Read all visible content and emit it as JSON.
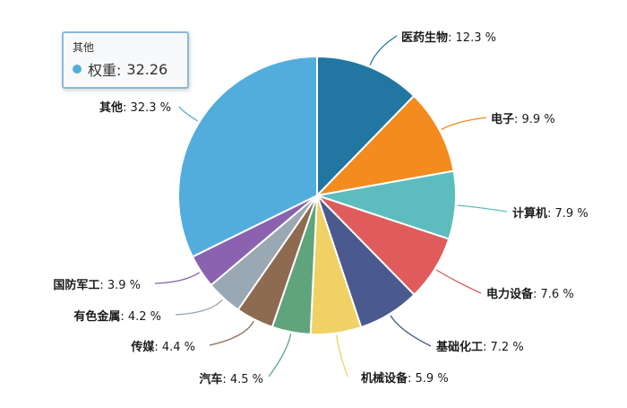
{
  "chart_data": {
    "type": "pie",
    "title": "",
    "unit": "%",
    "start_angle": "12 o'clock, clockwise",
    "categories": [
      "医药生物",
      "电子",
      "计算机",
      "电力设备",
      "基础化工",
      "机械设备",
      "汽车",
      "传媒",
      "有色金属",
      "国防军工",
      "其他"
    ],
    "values": [
      12.3,
      9.9,
      7.9,
      7.6,
      7.2,
      5.9,
      4.5,
      4.4,
      4.2,
      3.9,
      32.3
    ],
    "colors": [
      "#2276a2",
      "#f38b1f",
      "#5dbdbe",
      "#e05b5b",
      "#4a5a8e",
      "#f0d164",
      "#5fa47c",
      "#8e6a50",
      "#9aa8b3",
      "#8a62b0",
      "#52addc"
    ],
    "labels": [
      "医药生物: 12.3 %",
      "电子: 9.9 %",
      "计算机: 7.9 %",
      "电力设备: 7.6 %",
      "基础化工: 7.2 %",
      "机械设备: 5.9 %",
      "汽车: 4.5 %",
      "传媒: 4.4 %",
      "有色金属: 4.2 %",
      "国防军工: 3.9 %",
      "其他: 32.3 %"
    ],
    "legend": "none"
  },
  "tooltip": {
    "title": "其他",
    "series_label": "权重:",
    "value": "32.26",
    "dot_color": "#52addc"
  }
}
